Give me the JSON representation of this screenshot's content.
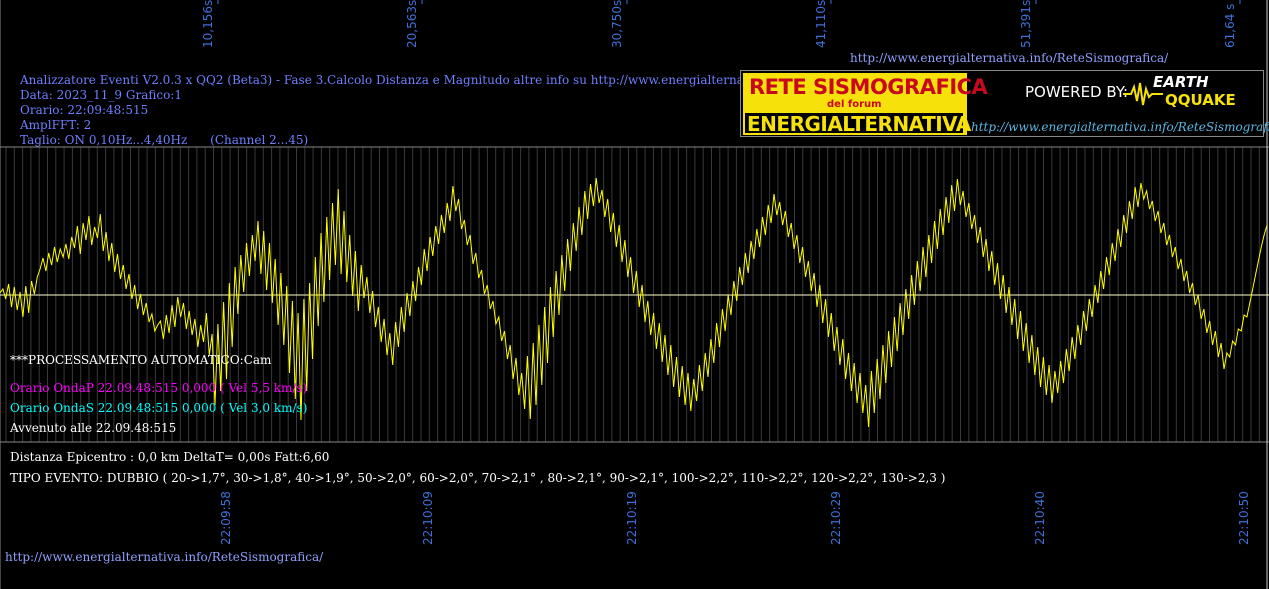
{
  "header": {
    "top_right_url": "http://www.energialternativa.info/ReteSismografica/",
    "title_line": "Analizzatore Eventi V2.0.3 x QQ2 (Beta3) - Fase 3.Calcolo Distanza e Magnitudo altre info su http://www.energialternativa.info/ReteSism",
    "data_line": "Data: 2023_11_9 Grafico:1",
    "orario_line": "Orario: 22:09:48:515",
    "amplfft_line": "AmplFFT: 2",
    "taglio_line": "Taglio: ON 0,10Hz...4,40Hz      (Channel 2...45)"
  },
  "logo": {
    "line1": "RETE SISMOGRAFICA",
    "line2": "del forum",
    "line3": "ENERGIALTERNATIVA",
    "powered": "POWERED BY:",
    "brand1": "EARTH",
    "brand2": "QQUAKE",
    "url": "http://www.energialternativa.info/ReteSismografica"
  },
  "info": {
    "processing": "***PROCESSAMENTO AUTOMATICO:Cam",
    "onda_p": "Orario OndaP 22.09.48:515  0,000 ( Vel 5,5 km/s)",
    "onda_s": "Orario OndaS 22.09.48:515  0,000 ( Vel 3,0 km/s)",
    "avvenuto": "Avvenuto alle 22.09.48:515",
    "distanza": "Distanza Epicentro : 0,0 km DeltaT= 0,00s  Fatt:6,60",
    "tipo": "TIPO EVENTO: DUBBIO ( 20->1,7°, 30->1,8°, 40->1,9°, 50->2,0°, 60->2,0°, 70->2,1° , 80->2,1°, 90->2,1°, 100->2,2°, 110->2,2°, 120->2,2°, 130->2,3 )"
  },
  "footer_url": "http://www.energialternativa.info/ReteSismografica/",
  "colors": {
    "trace": "#ffff00",
    "grid": "#3a3a3a",
    "axis_text": "#3f6fd9",
    "baseline": "#ffffcc"
  },
  "chart_data": {
    "type": "line",
    "top_ticks": [
      "10,156s",
      "20,563s",
      "30,750s",
      "41,110s",
      "51,391s",
      "61,64 s"
    ],
    "bottom_ticks": [
      "22:09:58",
      "22:10:09",
      "22:10:19",
      "22:10:29",
      "22:10:40",
      "22:10:50"
    ],
    "series": [
      {
        "values": [
          2,
          6,
          -4,
          11,
          -12,
          8,
          -15,
          3,
          -22,
          9,
          -18,
          14,
          1,
          18,
          26,
          37,
          24,
          42,
          30,
          48,
          33,
          46,
          38,
          51,
          36,
          58,
          47,
          69,
          41,
          72,
          55,
          79,
          50,
          68,
          57,
          81,
          44,
          63,
          34,
          52,
          23,
          41,
          16,
          30,
          6,
          21,
          -4,
          10,
          -14,
          1,
          -20,
          -8,
          -27,
          -19,
          -36,
          -30,
          -26,
          -44,
          -20,
          -38,
          -10,
          -32,
          -2,
          -22,
          -8,
          -34,
          -16,
          -40,
          -24,
          -52,
          -30,
          -47,
          -18,
          -60,
          -39,
          -110,
          -29,
          -96,
          -7,
          -84,
          12,
          -52,
          28,
          -19,
          40,
          3,
          52,
          19,
          60,
          34,
          74,
          21,
          64,
          5,
          52,
          -8,
          36,
          -30,
          22,
          -50,
          9,
          -78,
          -6,
          -104,
          -18,
          -125,
          -4,
          -96,
          12,
          -64,
          38,
          -31,
          62,
          -7,
          78,
          15,
          92,
          30,
          106,
          21,
          84,
          13,
          60,
          -1,
          44,
          -16,
          30,
          -3,
          18,
          -18,
          4,
          -32,
          -12,
          -47,
          -24,
          -60,
          -38,
          -70,
          -27,
          -52,
          -12,
          -37,
          2,
          -21,
          14,
          -6,
          28,
          10,
          46,
          24,
          58,
          39,
          69,
          51,
          80,
          62,
          92,
          74,
          109,
          84,
          96,
          66,
          75,
          50,
          60,
          31,
          42,
          17,
          25,
          1,
          10,
          -14,
          -6,
          -29,
          -22,
          -46,
          -36,
          -64,
          -50,
          -84,
          -63,
          -100,
          -78,
          -114,
          -61,
          -124,
          -48,
          -110,
          -30,
          -90,
          -12,
          -68,
          8,
          -42,
          24,
          -20,
          40,
          4,
          56,
          24,
          72,
          44,
          88,
          60,
          104,
          76,
          111,
          89,
          117,
          92,
          105,
          78,
          96,
          63,
          82,
          48,
          70,
          33,
          55,
          18,
          38,
          2,
          24,
          -12,
          10,
          -27,
          -6,
          -40,
          -18,
          -54,
          -28,
          -67,
          -40,
          -80,
          -50,
          -92,
          -62,
          -102,
          -71,
          -110,
          -78,
          -116,
          -84,
          -106,
          -70,
          -96,
          -58,
          -82,
          -44,
          -68,
          -28,
          -52,
          -14,
          -36,
          0,
          -20,
          14,
          -6,
          28,
          10,
          42,
          22,
          54,
          36,
          66,
          48,
          78,
          60,
          90,
          72,
          101,
          80,
          93,
          70,
          84,
          58,
          72,
          46,
          60,
          32,
          48,
          18,
          34,
          4,
          22,
          -12,
          10,
          -28,
          -4,
          -42,
          -18,
          -56,
          -32,
          -70,
          -44,
          -84,
          -58,
          -96,
          -68,
          -108,
          -78,
          -118,
          -90,
          -132,
          -76,
          -118,
          -64,
          -104,
          -50,
          -88,
          -36,
          -72,
          -22,
          -56,
          -8,
          -40,
          6,
          -24,
          20,
          -10,
          34,
          4,
          48,
          18,
          60,
          32,
          74,
          46,
          86,
          60,
          98,
          72,
          110,
          84,
          116,
          90,
          104,
          78,
          92,
          66,
          80,
          52,
          68,
          38,
          56,
          24,
          44,
          10,
          32,
          -4,
          20,
          -18,
          8,
          -30,
          -4,
          -44,
          -16,
          -56,
          -28,
          -68,
          -40,
          -80,
          -52,
          -92,
          -62,
          -100,
          -70,
          -108,
          -76,
          -98,
          -66,
          -88,
          -54,
          -76,
          -42,
          -64,
          -30,
          -50,
          -16,
          -36,
          -4,
          -22,
          10,
          -8,
          24,
          6,
          38,
          20,
          52,
          34,
          66,
          48,
          80,
          62,
          94,
          76,
          108,
          88,
          112,
          96,
          104,
          86,
          94,
          74,
          84,
          62,
          72,
          50,
          60,
          38,
          48,
          26,
          36,
          14,
          24,
          2,
          12,
          -10,
          0,
          -24,
          -14,
          -38,
          -26,
          -50,
          -36,
          -62,
          -48,
          -74,
          -58,
          -62,
          -46,
          -50,
          -34,
          -36,
          -20,
          -22,
          -8,
          6,
          20,
          34,
          48,
          60,
          70
        ]
      }
    ],
    "grid": true
  }
}
